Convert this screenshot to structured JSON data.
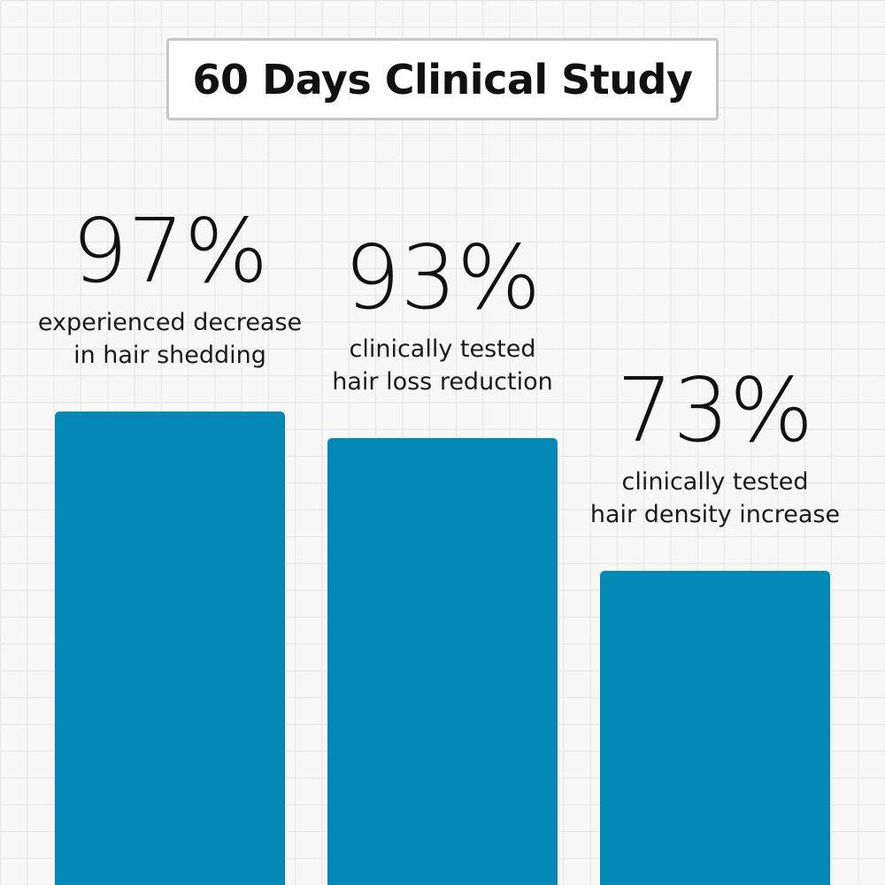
{
  "title": "60 Days Clinical Study",
  "colors": {
    "bar": "#0489b6",
    "background": "#f7f7f7",
    "grid": "#e4e4e4",
    "text": "#111111"
  },
  "chart_data": {
    "type": "bar",
    "title": "60 Days Clinical Study",
    "categories": [
      [
        "experienced decrease",
        "in hair shedding"
      ],
      [
        "clinically tested",
        "hair loss reduction"
      ],
      [
        "clinically tested",
        "hair density increase"
      ]
    ],
    "values": [
      97,
      93,
      73
    ],
    "value_labels": [
      "97%",
      "93%",
      "73%"
    ],
    "ylim": [
      0,
      100
    ],
    "grid": true,
    "legend": "none"
  }
}
